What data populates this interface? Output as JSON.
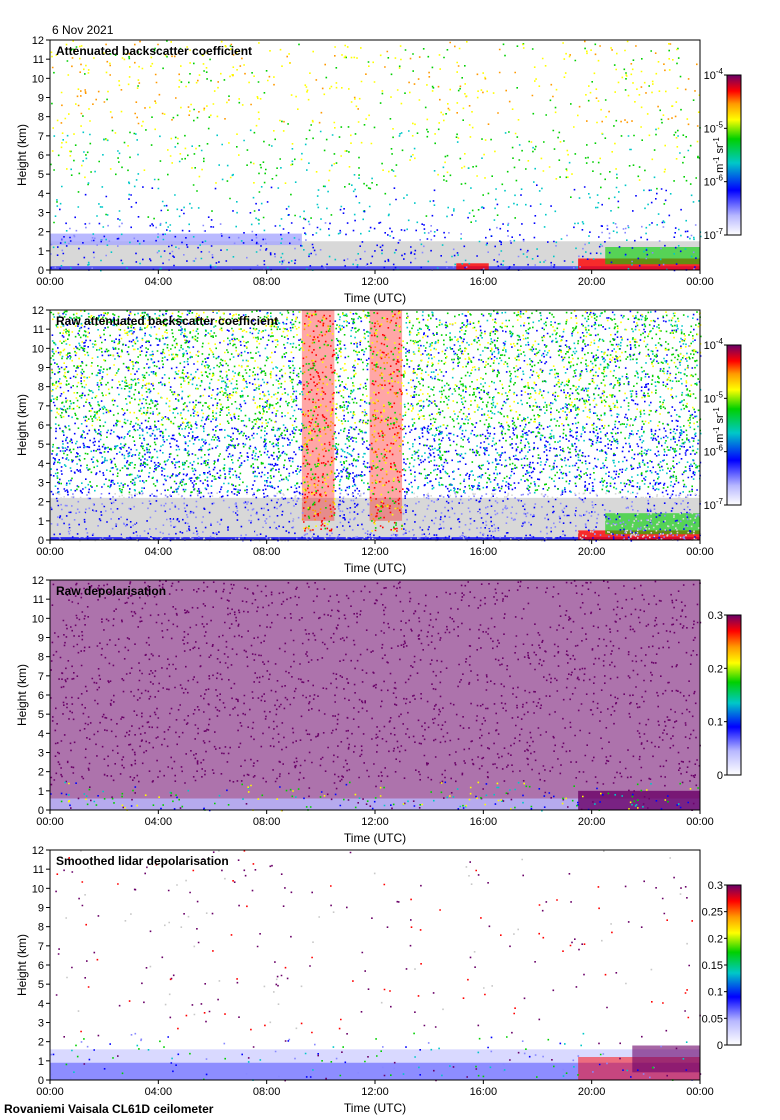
{
  "date_label": "6 Nov 2021",
  "footer": "Rovaniemi Vaisala CL61D ceilometer",
  "colors": {
    "purple": "#6a0068",
    "red": "#ff0000",
    "orange": "#ff9a00",
    "yellow": "#ffff00",
    "green": "#00d000",
    "cyan": "#00c8c8",
    "blue": "#0000ff",
    "lightgrey": "#d8d8d8"
  },
  "chart_data": [
    {
      "type": "heatmap",
      "title": "Attenuated backscatter coefficient",
      "xlabel": "Time (UTC)",
      "ylabel": "Height (km)",
      "xticks": [
        "00:00",
        "04:00",
        "08:00",
        "12:00",
        "16:00",
        "20:00",
        "00:00"
      ],
      "xlim": [
        0,
        24
      ],
      "yticks": [
        0,
        1,
        2,
        3,
        4,
        5,
        6,
        7,
        8,
        9,
        10,
        11,
        12
      ],
      "ylim": [
        0,
        12
      ],
      "colorbar": {
        "scale": "log",
        "range": [
          1e-07,
          0.0001
        ],
        "ticks": [
          {
            "base": "10",
            "exp": "-4"
          },
          {
            "base": "10",
            "exp": "-5"
          },
          {
            "base": "10",
            "exp": "-6"
          },
          {
            "base": "10",
            "exp": "-7"
          }
        ],
        "unit": "m-1 sr-1",
        "unit_parts": [
          "m",
          "-1",
          " sr",
          "-1"
        ]
      }
    },
    {
      "type": "heatmap",
      "title": "Raw attenuated backscatter coefficient",
      "xlabel": "Time (UTC)",
      "ylabel": "Height (km)",
      "xticks": [
        "00:00",
        "04:00",
        "08:00",
        "12:00",
        "16:00",
        "20:00",
        "00:00"
      ],
      "xlim": [
        0,
        24
      ],
      "yticks": [
        0,
        1,
        2,
        3,
        4,
        5,
        6,
        7,
        8,
        9,
        10,
        11,
        12
      ],
      "ylim": [
        0,
        12
      ],
      "colorbar": {
        "scale": "log",
        "range": [
          1e-07,
          0.0001
        ],
        "ticks": [
          {
            "base": "10",
            "exp": "-4"
          },
          {
            "base": "10",
            "exp": "-5"
          },
          {
            "base": "10",
            "exp": "-6"
          },
          {
            "base": "10",
            "exp": "-7"
          }
        ],
        "unit": "m-1 sr-1",
        "unit_parts": [
          "m",
          "-1",
          " sr",
          "-1"
        ]
      }
    },
    {
      "type": "heatmap",
      "title": "Raw depolarisation",
      "xlabel": "Time (UTC)",
      "ylabel": "Height (km)",
      "xticks": [
        "00:00",
        "04:00",
        "08:00",
        "12:00",
        "16:00",
        "20:00",
        "00:00"
      ],
      "xlim": [
        0,
        24
      ],
      "yticks": [
        0,
        1,
        2,
        3,
        4,
        5,
        6,
        7,
        8,
        9,
        10,
        11,
        12
      ],
      "ylim": [
        0,
        12
      ],
      "colorbar": {
        "scale": "linear",
        "range": [
          0,
          0.3
        ],
        "ticks": [
          "0.3",
          "0.2",
          "0.1",
          "0"
        ]
      }
    },
    {
      "type": "heatmap",
      "title": "Smoothed lidar depolarisation",
      "xlabel": "Time (UTC)",
      "ylabel": "Height (km)",
      "xticks": [
        "00:00",
        "04:00",
        "08:00",
        "12:00",
        "16:00",
        "20:00",
        "00:00"
      ],
      "xlim": [
        0,
        24
      ],
      "yticks": [
        0,
        1,
        2,
        3,
        4,
        5,
        6,
        7,
        8,
        9,
        10,
        11,
        12
      ],
      "ylim": [
        0,
        12
      ],
      "colorbar": {
        "scale": "linear",
        "range": [
          0,
          0.3
        ],
        "ticks": [
          "0.3",
          "0.25",
          "0.2",
          "0.15",
          "0.1",
          "0.05",
          "0"
        ]
      }
    }
  ]
}
